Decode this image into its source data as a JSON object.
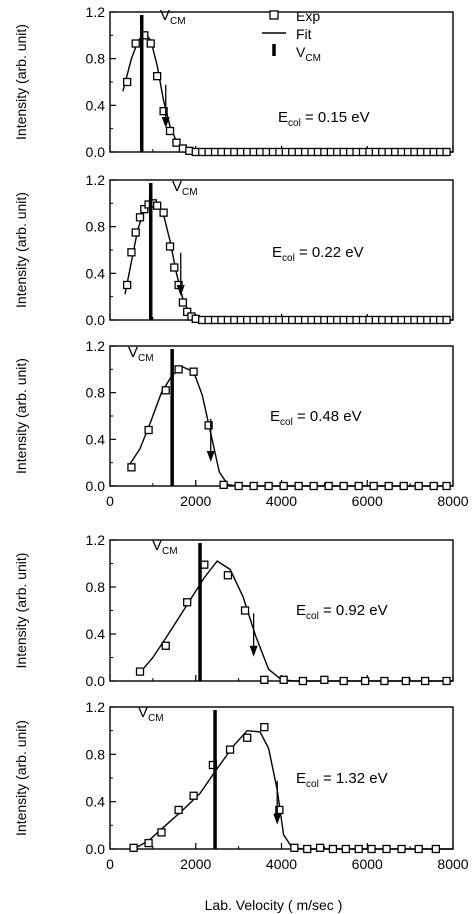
{
  "chart_data": [
    {
      "type": "scatter",
      "xlim": [
        0,
        8000
      ],
      "ylim": [
        0,
        1.2
      ],
      "yticks": [
        "0.0",
        "0.4",
        "0.8",
        "1.2"
      ],
      "ylabel": "Intensity (arb. unit)",
      "energy_label": "E",
      "energy_sub": "col",
      "energy_value": " = 0.15 eV",
      "vcm_label": "V",
      "vcm_sub": "CM",
      "vcm": 740,
      "arrow_x": 1300,
      "legend": [
        {
          "symbol": "square",
          "label": "Exp"
        },
        {
          "symbol": "line",
          "label": "Fit"
        },
        {
          "symbol": "bar",
          "label": "V",
          "sub": "CM"
        }
      ],
      "series": [
        {
          "name": "Exp",
          "points": [
            [
              400,
              0.6
            ],
            [
              600,
              0.93
            ],
            [
              800,
              1.0
            ],
            [
              950,
              0.93
            ],
            [
              1100,
              0.65
            ],
            [
              1250,
              0.35
            ],
            [
              1400,
              0.18
            ],
            [
              1550,
              0.08
            ],
            [
              1700,
              0.03
            ],
            [
              1850,
              0.01
            ],
            [
              2000,
              0.0
            ],
            [
              2150,
              0.0
            ],
            [
              2300,
              0.0
            ],
            [
              2450,
              0.0
            ],
            [
              2600,
              0.0
            ],
            [
              2750,
              0.0
            ],
            [
              2900,
              0.0
            ],
            [
              3050,
              0.0
            ],
            [
              3200,
              0.0
            ],
            [
              3350,
              0.0
            ],
            [
              3500,
              0.0
            ],
            [
              3650,
              0.0
            ],
            [
              3800,
              0.0
            ],
            [
              3950,
              0.0
            ],
            [
              4100,
              0.0
            ],
            [
              4250,
              0.0
            ],
            [
              4400,
              0.0
            ],
            [
              4550,
              0.0
            ],
            [
              4700,
              0.0
            ],
            [
              4850,
              0.0
            ],
            [
              5000,
              0.0
            ],
            [
              5150,
              0.0
            ],
            [
              5300,
              0.0
            ],
            [
              5450,
              0.0
            ],
            [
              5600,
              0.0
            ],
            [
              5750,
              0.0
            ],
            [
              5900,
              0.0
            ],
            [
              6050,
              0.0
            ],
            [
              6200,
              0.0
            ],
            [
              6350,
              0.0
            ],
            [
              6500,
              0.0
            ],
            [
              6650,
              0.0
            ],
            [
              6800,
              0.0
            ],
            [
              6950,
              0.0
            ],
            [
              7100,
              0.0
            ],
            [
              7250,
              0.0
            ],
            [
              7400,
              0.0
            ],
            [
              7550,
              0.0
            ],
            [
              7700,
              0.0
            ],
            [
              7850,
              0.0
            ]
          ]
        },
        {
          "name": "Fit",
          "points": [
            [
              300,
              0.52
            ],
            [
              500,
              0.8
            ],
            [
              650,
              0.95
            ],
            [
              800,
              1.02
            ],
            [
              950,
              0.96
            ],
            [
              1100,
              0.74
            ],
            [
              1250,
              0.44
            ],
            [
              1400,
              0.22
            ],
            [
              1550,
              0.09
            ],
            [
              1700,
              0.03
            ],
            [
              1900,
              0.01
            ],
            [
              2200,
              0.0
            ],
            [
              8000,
              0.0
            ]
          ]
        }
      ]
    },
    {
      "type": "scatter",
      "xlim": [
        0,
        8000
      ],
      "ylim": [
        0,
        1.2
      ],
      "yticks": [
        "0.0",
        "0.4",
        "0.8",
        "1.2"
      ],
      "ylabel": "Intensity (arb. unit)",
      "energy_label": "E",
      "energy_sub": "col",
      "energy_value": " = 0.22 eV",
      "vcm_label": "V",
      "vcm_sub": "CM",
      "vcm": 950,
      "arrow_x": 1650,
      "series": [
        {
          "name": "Exp",
          "points": [
            [
              400,
              0.3
            ],
            [
              500,
              0.58
            ],
            [
              600,
              0.75
            ],
            [
              700,
              0.88
            ],
            [
              800,
              0.95
            ],
            [
              900,
              0.99
            ],
            [
              1000,
              1.0
            ],
            [
              1100,
              0.98
            ],
            [
              1250,
              0.92
            ],
            [
              1400,
              0.63
            ],
            [
              1500,
              0.45
            ],
            [
              1600,
              0.3
            ],
            [
              1700,
              0.15
            ],
            [
              1800,
              0.07
            ],
            [
              1900,
              0.03
            ],
            [
              2000,
              0.01
            ],
            [
              2150,
              0.0
            ],
            [
              2300,
              0.0
            ],
            [
              2450,
              0.0
            ],
            [
              2600,
              0.0
            ],
            [
              2750,
              0.0
            ],
            [
              2900,
              0.0
            ],
            [
              3050,
              0.0
            ],
            [
              3200,
              0.0
            ],
            [
              3350,
              0.0
            ],
            [
              3500,
              0.0
            ],
            [
              3650,
              0.0
            ],
            [
              3800,
              0.0
            ],
            [
              3950,
              0.0
            ],
            [
              4100,
              0.0
            ],
            [
              4250,
              0.0
            ],
            [
              4400,
              0.0
            ],
            [
              4550,
              0.0
            ],
            [
              4700,
              0.0
            ],
            [
              4850,
              0.0
            ],
            [
              5000,
              0.0
            ],
            [
              5150,
              0.0
            ],
            [
              5300,
              0.0
            ],
            [
              5450,
              0.0
            ],
            [
              5600,
              0.0
            ],
            [
              5750,
              0.0
            ],
            [
              5900,
              0.0
            ],
            [
              6050,
              0.0
            ],
            [
              6200,
              0.0
            ],
            [
              6350,
              0.0
            ],
            [
              6500,
              0.0
            ],
            [
              6650,
              0.0
            ],
            [
              6800,
              0.0
            ],
            [
              6950,
              0.0
            ],
            [
              7100,
              0.0
            ],
            [
              7250,
              0.0
            ],
            [
              7400,
              0.0
            ],
            [
              7550,
              0.0
            ],
            [
              7700,
              0.0
            ],
            [
              7850,
              0.0
            ]
          ]
        },
        {
          "name": "Fit",
          "points": [
            [
              350,
              0.22
            ],
            [
              500,
              0.5
            ],
            [
              650,
              0.78
            ],
            [
              800,
              0.94
            ],
            [
              950,
              1.0
            ],
            [
              1100,
              1.0
            ],
            [
              1250,
              0.9
            ],
            [
              1400,
              0.68
            ],
            [
              1550,
              0.4
            ],
            [
              1700,
              0.18
            ],
            [
              1850,
              0.06
            ],
            [
              2000,
              0.02
            ],
            [
              2200,
              0.0
            ],
            [
              8000,
              0.0
            ]
          ]
        }
      ]
    },
    {
      "type": "scatter",
      "xlim": [
        0,
        8000
      ],
      "ylim": [
        0,
        1.2
      ],
      "yticks": [
        "0.0",
        "0.4",
        "0.8",
        "1.2"
      ],
      "xticks": [
        "0",
        "2000",
        "4000",
        "6000",
        "8000"
      ],
      "ylabel": "Intensity (arb. unit)",
      "energy_label": "E",
      "energy_sub": "col",
      "energy_value": " = 0.48 eV",
      "vcm_label": "V",
      "vcm_sub": "CM",
      "vcm": 1450,
      "arrow_x": 2350,
      "series": [
        {
          "name": "Exp",
          "points": [
            [
              500,
              0.16
            ],
            [
              900,
              0.48
            ],
            [
              1300,
              0.82
            ],
            [
              1600,
              1.0
            ],
            [
              1950,
              0.98
            ],
            [
              2300,
              0.52
            ],
            [
              2650,
              0.01
            ],
            [
              3000,
              0.0
            ],
            [
              3350,
              0.0
            ],
            [
              3700,
              0.0
            ],
            [
              4050,
              0.0
            ],
            [
              4400,
              0.0
            ],
            [
              4750,
              0.0
            ],
            [
              5100,
              0.0
            ],
            [
              5450,
              0.0
            ],
            [
              5800,
              0.0
            ],
            [
              6150,
              0.0
            ],
            [
              6500,
              0.0
            ],
            [
              6850,
              0.0
            ],
            [
              7200,
              0.0
            ],
            [
              7550,
              0.0
            ],
            [
              7850,
              0.0
            ]
          ]
        },
        {
          "name": "Fit",
          "points": [
            [
              450,
              0.18
            ],
            [
              700,
              0.32
            ],
            [
              950,
              0.55
            ],
            [
              1200,
              0.8
            ],
            [
              1450,
              0.95
            ],
            [
              1700,
              1.02
            ],
            [
              1950,
              0.98
            ],
            [
              2150,
              0.78
            ],
            [
              2350,
              0.45
            ],
            [
              2550,
              0.12
            ],
            [
              2750,
              0.01
            ],
            [
              3000,
              0.0
            ],
            [
              8000,
              0.0
            ]
          ]
        }
      ]
    },
    {
      "type": "scatter",
      "xlim": [
        0,
        8000
      ],
      "ylim": [
        0,
        1.2
      ],
      "yticks": [
        "0.0",
        "0.4",
        "0.8",
        "1.2"
      ],
      "ylabel": "Intensity (arb. unit)",
      "energy_label": "E",
      "energy_sub": "col",
      "energy_value": " = 0.92 eV",
      "vcm_label": "V",
      "vcm_sub": "CM",
      "vcm": 2100,
      "arrow_x": 3350,
      "series": [
        {
          "name": "Exp",
          "points": [
            [
              700,
              0.08
            ],
            [
              1300,
              0.3
            ],
            [
              1800,
              0.67
            ],
            [
              2200,
              0.99
            ],
            [
              2750,
              0.9
            ],
            [
              3150,
              0.6
            ],
            [
              3600,
              0.01
            ],
            [
              4050,
              0.01
            ],
            [
              4500,
              0.0
            ],
            [
              5000,
              0.01
            ],
            [
              5450,
              0.0
            ],
            [
              5950,
              0.0
            ],
            [
              6400,
              0.0
            ],
            [
              6900,
              0.0
            ],
            [
              7350,
              0.0
            ],
            [
              7850,
              0.0
            ]
          ]
        },
        {
          "name": "Fit",
          "points": [
            [
              650,
              0.05
            ],
            [
              1000,
              0.2
            ],
            [
              1400,
              0.42
            ],
            [
              1800,
              0.65
            ],
            [
              2200,
              0.88
            ],
            [
              2500,
              1.02
            ],
            [
              2800,
              0.95
            ],
            [
              3100,
              0.72
            ],
            [
              3400,
              0.38
            ],
            [
              3700,
              0.1
            ],
            [
              4000,
              0.01
            ],
            [
              4300,
              0.0
            ],
            [
              8000,
              0.0
            ]
          ]
        }
      ]
    },
    {
      "type": "scatter",
      "xlim": [
        0,
        8000
      ],
      "ylim": [
        0,
        1.2
      ],
      "yticks": [
        "0.0",
        "0.4",
        "0.8",
        "1.2"
      ],
      "xticks": [
        "0",
        "2000",
        "4000",
        "6000",
        "8000"
      ],
      "ylabel": "Intensity (arb. unit)",
      "xlabel": "Lab. Velocity ( m/sec )",
      "energy_label": "E",
      "energy_sub": "col",
      "energy_value": " = 1.32 eV",
      "vcm_label": "V",
      "vcm_sub": "CM",
      "vcm": 2450,
      "arrow_x": 3900,
      "series": [
        {
          "name": "Exp",
          "points": [
            [
              550,
              0.01
            ],
            [
              900,
              0.05
            ],
            [
              1200,
              0.14
            ],
            [
              1600,
              0.33
            ],
            [
              1950,
              0.45
            ],
            [
              2400,
              0.71
            ],
            [
              2800,
              0.84
            ],
            [
              3200,
              0.94
            ],
            [
              3600,
              1.03
            ],
            [
              3950,
              0.33
            ],
            [
              4300,
              0.01
            ],
            [
              4600,
              0.0
            ],
            [
              4900,
              0.01
            ],
            [
              5200,
              0.0
            ],
            [
              5500,
              0.0
            ],
            [
              5800,
              0.0
            ],
            [
              6100,
              0.0
            ],
            [
              6450,
              0.0
            ],
            [
              6800,
              0.0
            ],
            [
              7200,
              0.0
            ],
            [
              7600,
              0.0
            ]
          ]
        },
        {
          "name": "Fit",
          "points": [
            [
              550,
              0.0
            ],
            [
              900,
              0.07
            ],
            [
              1300,
              0.2
            ],
            [
              1700,
              0.33
            ],
            [
              2100,
              0.47
            ],
            [
              2500,
              0.68
            ],
            [
              2900,
              0.88
            ],
            [
              3200,
              1.0
            ],
            [
              3500,
              0.99
            ],
            [
              3700,
              0.85
            ],
            [
              3900,
              0.5
            ],
            [
              4050,
              0.12
            ],
            [
              4250,
              0.01
            ],
            [
              4500,
              0.0
            ],
            [
              8000,
              0.0
            ]
          ]
        }
      ]
    }
  ]
}
